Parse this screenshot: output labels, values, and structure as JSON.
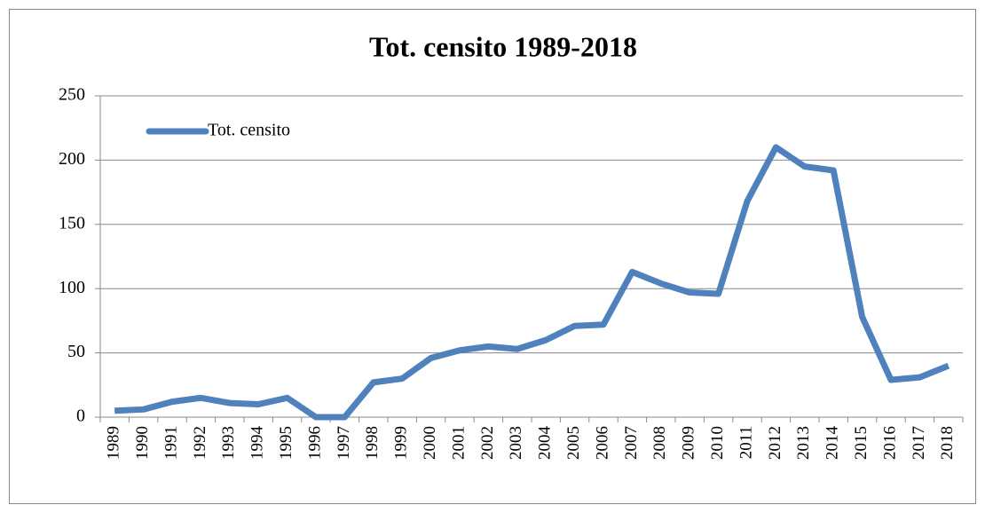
{
  "chart_data": {
    "type": "line",
    "title": "Tot. censito 1989-2018",
    "categories": [
      "1989",
      "1990",
      "1991",
      "1992",
      "1993",
      "1994",
      "1995",
      "1996",
      "1997",
      "1998",
      "1999",
      "2000",
      "2001",
      "2002",
      "2003",
      "2004",
      "2005",
      "2006",
      "2007",
      "2008",
      "2009",
      "2010",
      "2011",
      "2012",
      "2013",
      "2014",
      "2015",
      "2016",
      "2017",
      "2018"
    ],
    "series": [
      {
        "name": "Tot. censito",
        "color": "#4f81bd",
        "values": [
          5,
          6,
          12,
          15,
          11,
          10,
          15,
          0,
          0,
          27,
          30,
          46,
          52,
          55,
          53,
          60,
          71,
          72,
          113,
          104,
          97,
          96,
          168,
          210,
          195,
          192,
          78,
          29,
          31,
          40
        ]
      }
    ],
    "ylim": [
      0,
      250
    ],
    "yticks": [
      0,
      50,
      100,
      150,
      200,
      250
    ],
    "grid": true,
    "legend": "top-left"
  }
}
